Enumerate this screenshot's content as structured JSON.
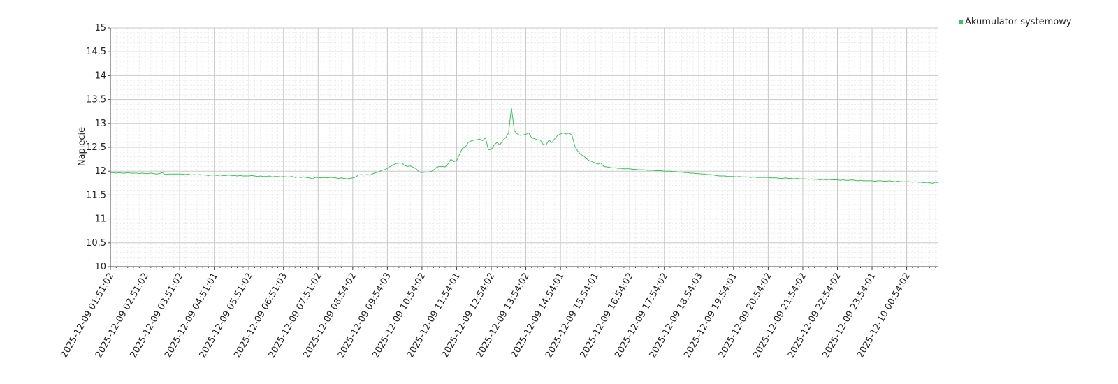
{
  "chart_data": {
    "type": "line",
    "y_label": "Napięcie",
    "ylim": [
      10,
      15
    ],
    "yticks": [
      10,
      10.5,
      11,
      11.5,
      12,
      12.5,
      13,
      13.5,
      14,
      14.5,
      15
    ],
    "grid": true,
    "legend": "top-right",
    "categories": [
      "2025-12-09 01:51:02",
      null,
      null,
      null,
      null,
      null,
      null,
      null,
      null,
      null,
      null,
      null,
      "2025-12-09 02:51:02",
      null,
      null,
      null,
      null,
      null,
      null,
      null,
      null,
      null,
      null,
      null,
      "2025-12-09 03:51:02",
      null,
      null,
      null,
      null,
      null,
      null,
      null,
      null,
      null,
      null,
      null,
      "2025-12-09 04:51:01",
      null,
      null,
      null,
      null,
      null,
      null,
      null,
      null,
      null,
      null,
      null,
      "2025-12-09 05:51:02",
      null,
      null,
      null,
      null,
      null,
      null,
      null,
      null,
      null,
      null,
      null,
      "2025-12-09 06:51:03",
      null,
      null,
      null,
      null,
      null,
      null,
      null,
      null,
      null,
      null,
      null,
      "2025-12-09 07:51:02",
      null,
      null,
      null,
      null,
      null,
      null,
      null,
      null,
      null,
      null,
      null,
      "2025-12-09 08:54:02",
      null,
      null,
      null,
      null,
      null,
      null,
      null,
      null,
      null,
      null,
      null,
      "2025-12-09 09:54:03",
      null,
      null,
      null,
      null,
      null,
      null,
      null,
      null,
      null,
      null,
      null,
      "2025-12-09 10:54:02",
      null,
      null,
      null,
      null,
      null,
      null,
      null,
      null,
      null,
      null,
      null,
      "2025-12-09 11:54:01",
      null,
      null,
      null,
      null,
      null,
      null,
      null,
      null,
      null,
      null,
      null,
      "2025-12-09 12:54:02",
      null,
      null,
      null,
      null,
      null,
      null,
      null,
      null,
      null,
      null,
      null,
      "2025-12-09 13:54:02",
      null,
      null,
      null,
      null,
      null,
      null,
      null,
      null,
      null,
      null,
      null,
      "2025-12-09 14:54:01",
      null,
      null,
      null,
      null,
      null,
      null,
      null,
      null,
      null,
      null,
      null,
      "2025-12-09 15:54:01",
      null,
      null,
      null,
      null,
      null,
      null,
      null,
      null,
      null,
      null,
      null,
      "2025-12-09 16:54:02",
      null,
      null,
      null,
      null,
      null,
      null,
      null,
      null,
      null,
      null,
      null,
      "2025-12-09 17:54:02",
      null,
      null,
      null,
      null,
      null,
      null,
      null,
      null,
      null,
      null,
      null,
      "2025-12-09 18:54:03",
      null,
      null,
      null,
      null,
      null,
      null,
      null,
      null,
      null,
      null,
      null,
      "2025-12-09 19:54:01",
      null,
      null,
      null,
      null,
      null,
      null,
      null,
      null,
      null,
      null,
      null,
      "2025-12-09 20:54:02",
      null,
      null,
      null,
      null,
      null,
      null,
      null,
      null,
      null,
      null,
      null,
      "2025-12-09 21:54:02",
      null,
      null,
      null,
      null,
      null,
      null,
      null,
      null,
      null,
      null,
      null,
      "2025-12-09 22:54:02",
      null,
      null,
      null,
      null,
      null,
      null,
      null,
      null,
      null,
      null,
      null,
      "2025-12-09 23:54:01",
      null,
      null,
      null,
      null,
      null,
      null,
      null,
      null,
      null,
      null,
      null,
      "2025-12-10 00:54:02",
      null,
      null,
      null,
      null,
      null,
      null,
      null,
      null,
      null,
      null,
      null
    ],
    "series": [
      {
        "name": "Akumulator systemowy",
        "color": "#3cc25a",
        "values": [
          11.97,
          11.97,
          11.96,
          11.97,
          11.96,
          11.96,
          11.97,
          11.96,
          11.96,
          11.96,
          11.95,
          11.96,
          11.95,
          11.95,
          11.96,
          11.95,
          11.94,
          11.95,
          11.97,
          11.93,
          11.94,
          11.94,
          11.94,
          11.94,
          11.94,
          11.94,
          11.93,
          11.94,
          11.92,
          11.93,
          11.92,
          11.93,
          11.92,
          11.92,
          11.91,
          11.92,
          11.92,
          11.91,
          11.92,
          11.91,
          11.91,
          11.92,
          11.91,
          11.91,
          11.9,
          11.91,
          11.9,
          11.9,
          11.9,
          11.91,
          11.9,
          11.89,
          11.9,
          11.89,
          11.89,
          11.9,
          11.88,
          11.89,
          11.89,
          11.88,
          11.89,
          11.88,
          11.88,
          11.89,
          11.87,
          11.88,
          11.87,
          11.88,
          11.87,
          11.86,
          11.84,
          11.87,
          11.87,
          11.86,
          11.87,
          11.86,
          11.87,
          11.87,
          11.86,
          11.85,
          11.86,
          11.85,
          11.84,
          11.85,
          11.86,
          11.88,
          11.92,
          11.93,
          11.92,
          11.93,
          11.92,
          11.95,
          11.97,
          11.98,
          12.02,
          12.03,
          12.06,
          12.1,
          12.13,
          12.16,
          12.17,
          12.17,
          12.12,
          12.1,
          12.11,
          12.08,
          12.05,
          11.98,
          11.97,
          11.98,
          11.98,
          11.99,
          12.02,
          12.08,
          12.1,
          12.1,
          12.09,
          12.15,
          12.25,
          12.2,
          12.22,
          12.35,
          12.48,
          12.5,
          12.6,
          12.63,
          12.65,
          12.66,
          12.67,
          12.64,
          12.7,
          12.45,
          12.45,
          12.55,
          12.6,
          12.55,
          12.65,
          12.7,
          12.8,
          13.33,
          12.85,
          12.78,
          12.75,
          12.76,
          12.77,
          12.8,
          12.7,
          12.68,
          12.66,
          12.65,
          12.56,
          12.55,
          12.65,
          12.6,
          12.68,
          12.75,
          12.78,
          12.8,
          12.78,
          12.8,
          12.75,
          12.52,
          12.42,
          12.35,
          12.32,
          12.26,
          12.22,
          12.2,
          12.17,
          12.15,
          12.17,
          12.1,
          12.09,
          12.08,
          12.07,
          12.07,
          12.06,
          12.06,
          12.05,
          12.05,
          12.05,
          12.04,
          12.04,
          12.03,
          12.03,
          12.03,
          12.02,
          12.02,
          12.02,
          12.01,
          12.01,
          12.01,
          12.0,
          12.0,
          12.0,
          11.99,
          11.99,
          11.98,
          11.98,
          11.97,
          11.97,
          11.96,
          11.96,
          11.95,
          11.95,
          11.94,
          11.94,
          11.93,
          11.93,
          11.92,
          11.91,
          11.9,
          11.9,
          11.9,
          11.89,
          11.89,
          11.89,
          11.88,
          11.89,
          11.88,
          11.88,
          11.88,
          11.87,
          11.88,
          11.87,
          11.87,
          11.87,
          11.87,
          11.87,
          11.86,
          11.86,
          11.86,
          11.85,
          11.85,
          11.86,
          11.85,
          11.85,
          11.84,
          11.85,
          11.84,
          11.84,
          11.84,
          11.83,
          11.84,
          11.83,
          11.83,
          11.82,
          11.83,
          11.82,
          11.83,
          11.82,
          11.82,
          11.82,
          11.81,
          11.82,
          11.81,
          11.81,
          11.82,
          11.81,
          11.8,
          11.81,
          11.8,
          11.8,
          11.8,
          11.8,
          11.79,
          11.8,
          11.8,
          11.79,
          11.79,
          11.8,
          11.79,
          11.78,
          11.79,
          11.78,
          11.78,
          11.78,
          11.78,
          11.77,
          11.78,
          11.77,
          11.77,
          11.76,
          11.77,
          11.76,
          11.75,
          11.77,
          11.76
        ]
      }
    ]
  }
}
